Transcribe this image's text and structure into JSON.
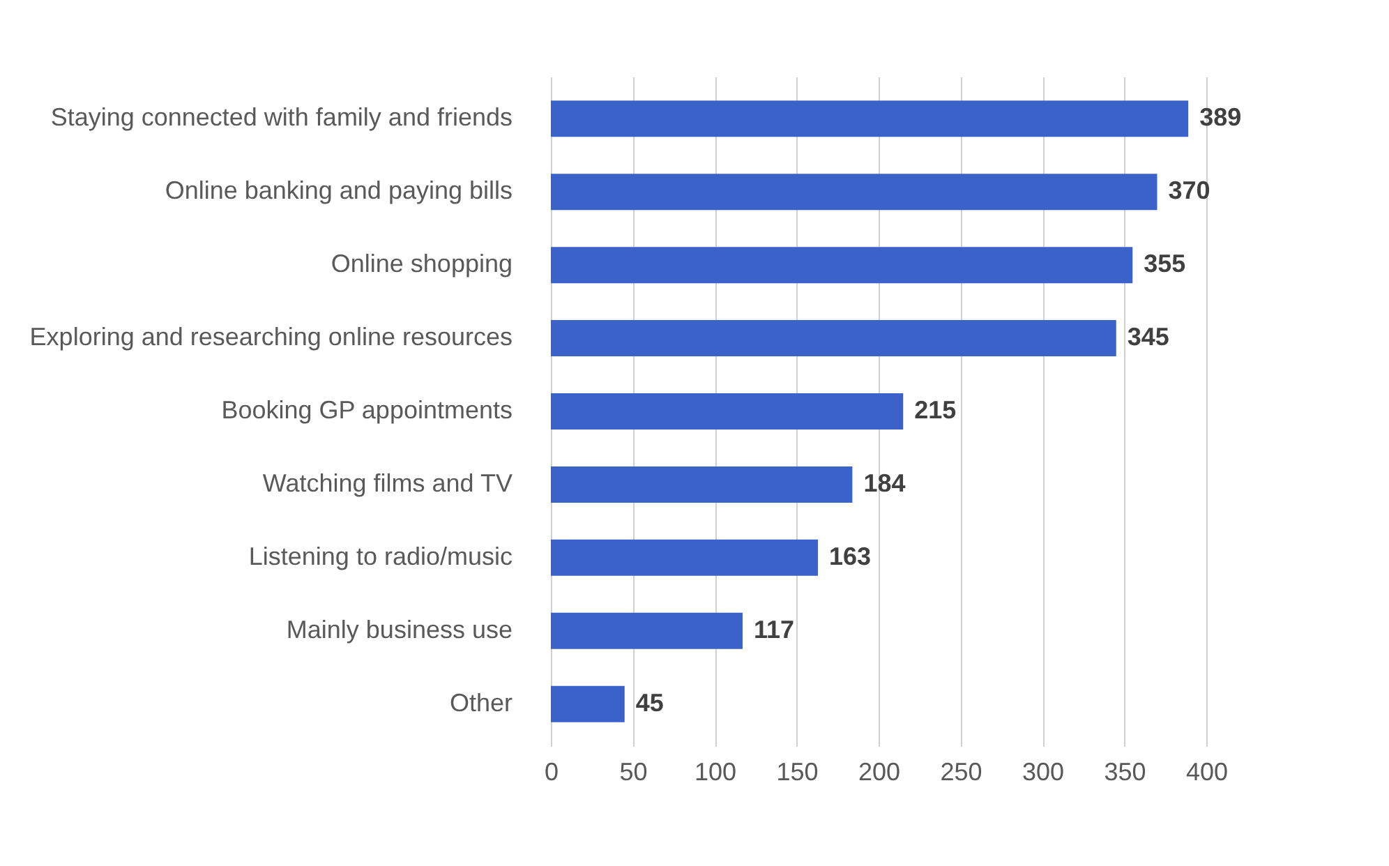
{
  "chart_data": {
    "type": "bar",
    "orientation": "horizontal",
    "categories": [
      "Staying connected with family and friends",
      "Online banking and paying bills",
      "Online shopping",
      "Exploring and researching online resources",
      "Booking GP appointments",
      "Watching films and TV",
      "Listening to radio/music",
      "Mainly business use",
      "Other"
    ],
    "values": [
      389,
      370,
      355,
      345,
      215,
      184,
      163,
      117,
      45
    ],
    "color": "#3a62c9",
    "xlim": [
      0,
      400
    ],
    "xticks": [
      0,
      50,
      100,
      150,
      200,
      250,
      300,
      350,
      400
    ],
    "grid": "x",
    "data_labels": true
  }
}
